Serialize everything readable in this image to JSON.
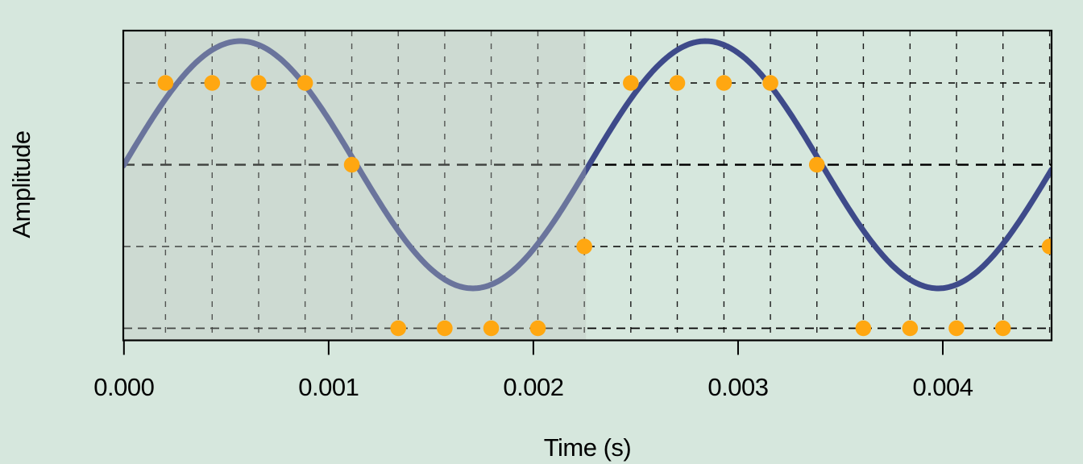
{
  "page": {
    "background": "#d6e7dd"
  },
  "chart_data": {
    "type": "line",
    "title": "",
    "xlabel": "Time (s)",
    "ylabel": "Amplitude",
    "x_axis": {
      "tick_labels": [
        "0.000",
        "0.001",
        "0.002",
        "0.003",
        "0.004"
      ],
      "tick_values_s": [
        0,
        0.001,
        0.002,
        0.003,
        0.004
      ],
      "range_s": [
        0,
        0.004532
      ]
    },
    "y_axis": {
      "tick_labels": [],
      "range_levels": [
        -2.15,
        1.64
      ],
      "grid_on": true
    },
    "grid": {
      "vertical_at_sample_times": true,
      "horizontal_level_lines": [
        1,
        0,
        -1,
        -2
      ]
    },
    "sine_wave": {
      "frequency_hz": 440,
      "amplitude_levels": 1.512,
      "phase_deg": 0,
      "color": "#3E4A8A"
    },
    "samples": {
      "count": 20,
      "interval_ms": 0.2273,
      "first_sample_ms": 0.2035,
      "times_ms": [
        0.203,
        0.431,
        0.658,
        0.885,
        1.113,
        1.34,
        1.567,
        1.794,
        2.022,
        2.249,
        2.476,
        2.703,
        2.931,
        3.158,
        3.385,
        3.612,
        3.84,
        4.067,
        4.294,
        4.522
      ],
      "quantized_levels": [
        1,
        1,
        1,
        1,
        0,
        -2,
        -2,
        -2,
        -2,
        -1,
        1,
        1,
        1,
        1,
        0,
        -2,
        -2,
        -2,
        -2,
        -1
      ],
      "color": "#FFA711"
    },
    "highlight_region": {
      "start_ms": 0,
      "end_ms": 2.257,
      "overlay_color": "rgba(190,195,190,0.35)"
    },
    "legend": null
  },
  "colors": {
    "background": "#d6e7dd",
    "axis": "#000000",
    "gridline": "#1a1a1a",
    "curve": "#3E4A8A",
    "sample_dot": "#FFA711",
    "text": "#000000"
  }
}
